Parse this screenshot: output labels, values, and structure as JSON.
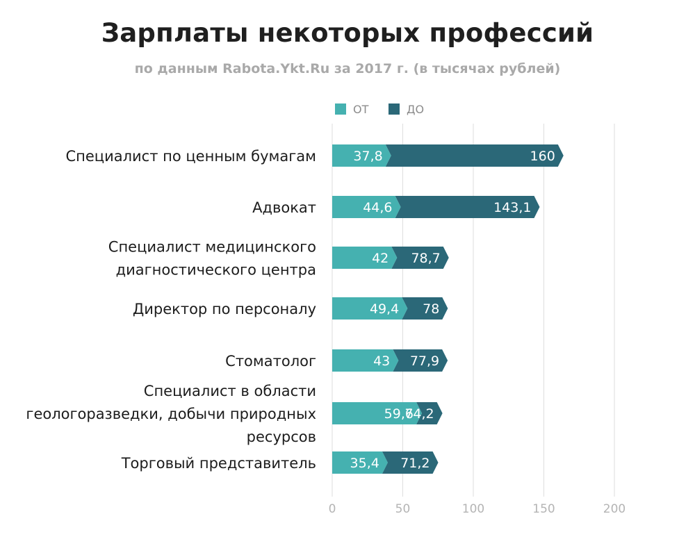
{
  "chart_data": {
    "type": "bar",
    "title": "Зарплаты некоторых профессий",
    "subtitle": "по данным Rabota.Ykt.Ru за 2017 г. (в тысячах рублей)",
    "xlim": [
      0,
      200
    ],
    "xticks": [
      "0",
      "50",
      "100",
      "150",
      "200"
    ],
    "grid": true,
    "legend_position": "top",
    "categories": [
      [
        "Специалист по ценным бумагам"
      ],
      [
        "Адвокат"
      ],
      [
        "Специалист медицинского",
        "диагностического центра"
      ],
      [
        "Директор по персоналу"
      ],
      [
        "Стоматолог"
      ],
      [
        "Специалист в области",
        "геологоразведки, добычи природных",
        "ресурсов"
      ],
      [
        "Торговый представитель"
      ]
    ],
    "series": [
      {
        "name": "ОТ",
        "color": "#45b1b0",
        "values": [
          37.8,
          44.6,
          42,
          49.4,
          43,
          59.6,
          35.4
        ],
        "labels": [
          "37,8",
          "44,6",
          "42",
          "49,4",
          "43",
          "59,6",
          "35,4"
        ]
      },
      {
        "name": "ДО",
        "color": "#2b6878",
        "values": [
          160,
          143.1,
          78.7,
          78,
          77.9,
          74.2,
          71.2
        ],
        "labels": [
          "160",
          "143,1",
          "78,7",
          "78",
          "77,9",
          "74,2",
          "71,2"
        ]
      }
    ]
  }
}
